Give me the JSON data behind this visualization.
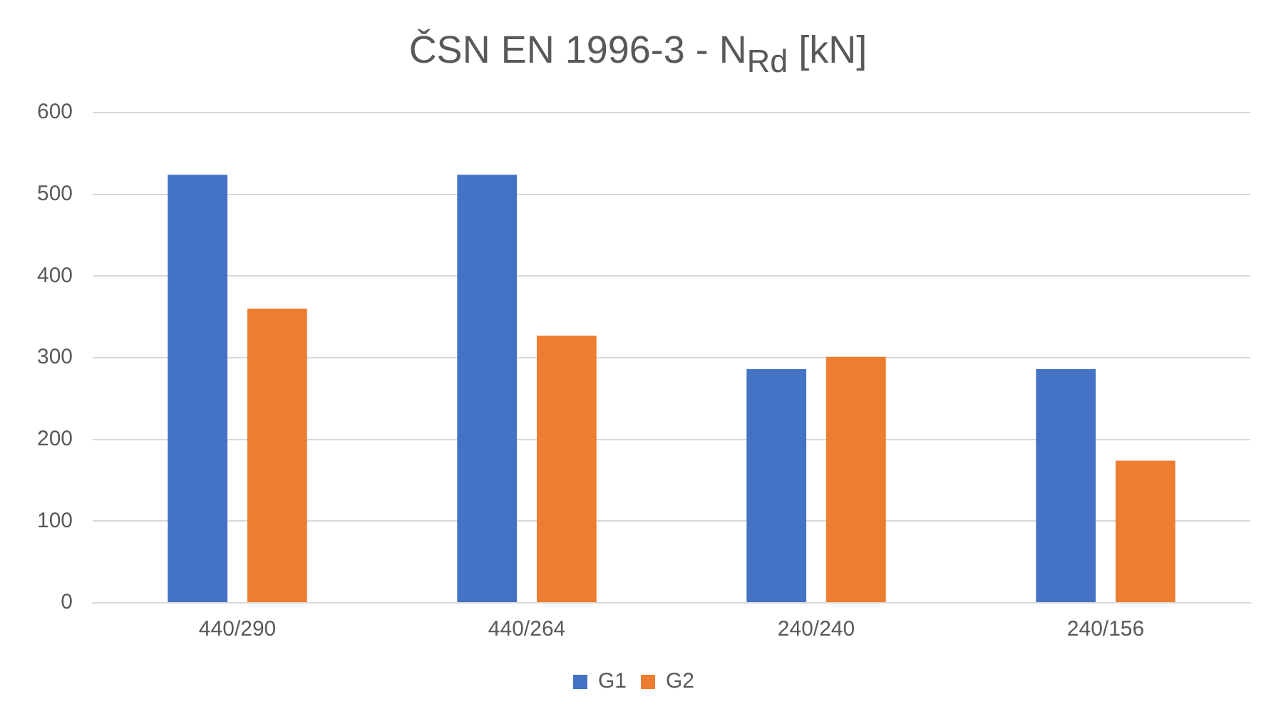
{
  "chart_data": {
    "type": "bar",
    "title": "ČSN EN 1996-3 - N$_{Rd}$ [kN]",
    "categories": [
      "440/290",
      "440/264",
      "240/240",
      "240/156"
    ],
    "series": [
      {
        "name": "G1",
        "color": "#4472c4",
        "values": [
          524,
          524,
          286,
          286
        ]
      },
      {
        "name": "G2",
        "color": "#ed7d31",
        "values": [
          360,
          327,
          301,
          174
        ]
      }
    ],
    "ylim": [
      0,
      600
    ],
    "yticks": [
      0,
      100,
      200,
      300,
      400,
      500,
      600
    ],
    "grid": "y",
    "legend": "bottom"
  }
}
